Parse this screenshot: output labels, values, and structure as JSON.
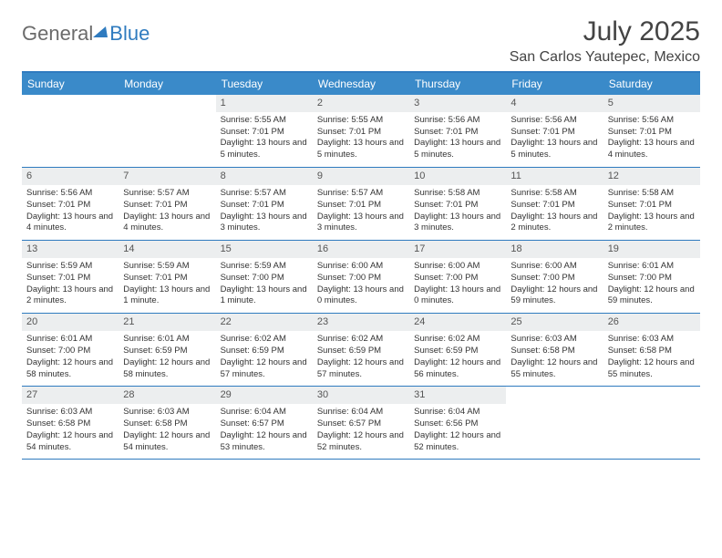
{
  "logo": {
    "general": "General",
    "blue": "Blue"
  },
  "title": "July 2025",
  "location": "San Carlos Yautepec, Mexico",
  "colors": {
    "header_bg": "#3a8ac9",
    "border": "#2f7bbf",
    "daynum_bg": "#eceeef",
    "text": "#333333"
  },
  "weekdays": [
    "Sunday",
    "Monday",
    "Tuesday",
    "Wednesday",
    "Thursday",
    "Friday",
    "Saturday"
  ],
  "weeks": [
    [
      null,
      null,
      {
        "n": "1",
        "sr": "5:55 AM",
        "ss": "7:01 PM",
        "dl": "13 hours and 5 minutes."
      },
      {
        "n": "2",
        "sr": "5:55 AM",
        "ss": "7:01 PM",
        "dl": "13 hours and 5 minutes."
      },
      {
        "n": "3",
        "sr": "5:56 AM",
        "ss": "7:01 PM",
        "dl": "13 hours and 5 minutes."
      },
      {
        "n": "4",
        "sr": "5:56 AM",
        "ss": "7:01 PM",
        "dl": "13 hours and 5 minutes."
      },
      {
        "n": "5",
        "sr": "5:56 AM",
        "ss": "7:01 PM",
        "dl": "13 hours and 4 minutes."
      }
    ],
    [
      {
        "n": "6",
        "sr": "5:56 AM",
        "ss": "7:01 PM",
        "dl": "13 hours and 4 minutes."
      },
      {
        "n": "7",
        "sr": "5:57 AM",
        "ss": "7:01 PM",
        "dl": "13 hours and 4 minutes."
      },
      {
        "n": "8",
        "sr": "5:57 AM",
        "ss": "7:01 PM",
        "dl": "13 hours and 3 minutes."
      },
      {
        "n": "9",
        "sr": "5:57 AM",
        "ss": "7:01 PM",
        "dl": "13 hours and 3 minutes."
      },
      {
        "n": "10",
        "sr": "5:58 AM",
        "ss": "7:01 PM",
        "dl": "13 hours and 3 minutes."
      },
      {
        "n": "11",
        "sr": "5:58 AM",
        "ss": "7:01 PM",
        "dl": "13 hours and 2 minutes."
      },
      {
        "n": "12",
        "sr": "5:58 AM",
        "ss": "7:01 PM",
        "dl": "13 hours and 2 minutes."
      }
    ],
    [
      {
        "n": "13",
        "sr": "5:59 AM",
        "ss": "7:01 PM",
        "dl": "13 hours and 2 minutes."
      },
      {
        "n": "14",
        "sr": "5:59 AM",
        "ss": "7:01 PM",
        "dl": "13 hours and 1 minute."
      },
      {
        "n": "15",
        "sr": "5:59 AM",
        "ss": "7:00 PM",
        "dl": "13 hours and 1 minute."
      },
      {
        "n": "16",
        "sr": "6:00 AM",
        "ss": "7:00 PM",
        "dl": "13 hours and 0 minutes."
      },
      {
        "n": "17",
        "sr": "6:00 AM",
        "ss": "7:00 PM",
        "dl": "13 hours and 0 minutes."
      },
      {
        "n": "18",
        "sr": "6:00 AM",
        "ss": "7:00 PM",
        "dl": "12 hours and 59 minutes."
      },
      {
        "n": "19",
        "sr": "6:01 AM",
        "ss": "7:00 PM",
        "dl": "12 hours and 59 minutes."
      }
    ],
    [
      {
        "n": "20",
        "sr": "6:01 AM",
        "ss": "7:00 PM",
        "dl": "12 hours and 58 minutes."
      },
      {
        "n": "21",
        "sr": "6:01 AM",
        "ss": "6:59 PM",
        "dl": "12 hours and 58 minutes."
      },
      {
        "n": "22",
        "sr": "6:02 AM",
        "ss": "6:59 PM",
        "dl": "12 hours and 57 minutes."
      },
      {
        "n": "23",
        "sr": "6:02 AM",
        "ss": "6:59 PM",
        "dl": "12 hours and 57 minutes."
      },
      {
        "n": "24",
        "sr": "6:02 AM",
        "ss": "6:59 PM",
        "dl": "12 hours and 56 minutes."
      },
      {
        "n": "25",
        "sr": "6:03 AM",
        "ss": "6:58 PM",
        "dl": "12 hours and 55 minutes."
      },
      {
        "n": "26",
        "sr": "6:03 AM",
        "ss": "6:58 PM",
        "dl": "12 hours and 55 minutes."
      }
    ],
    [
      {
        "n": "27",
        "sr": "6:03 AM",
        "ss": "6:58 PM",
        "dl": "12 hours and 54 minutes."
      },
      {
        "n": "28",
        "sr": "6:03 AM",
        "ss": "6:58 PM",
        "dl": "12 hours and 54 minutes."
      },
      {
        "n": "29",
        "sr": "6:04 AM",
        "ss": "6:57 PM",
        "dl": "12 hours and 53 minutes."
      },
      {
        "n": "30",
        "sr": "6:04 AM",
        "ss": "6:57 PM",
        "dl": "12 hours and 52 minutes."
      },
      {
        "n": "31",
        "sr": "6:04 AM",
        "ss": "6:56 PM",
        "dl": "12 hours and 52 minutes."
      },
      null,
      null
    ]
  ],
  "labels": {
    "sunrise": "Sunrise:",
    "sunset": "Sunset:",
    "daylight": "Daylight:"
  }
}
